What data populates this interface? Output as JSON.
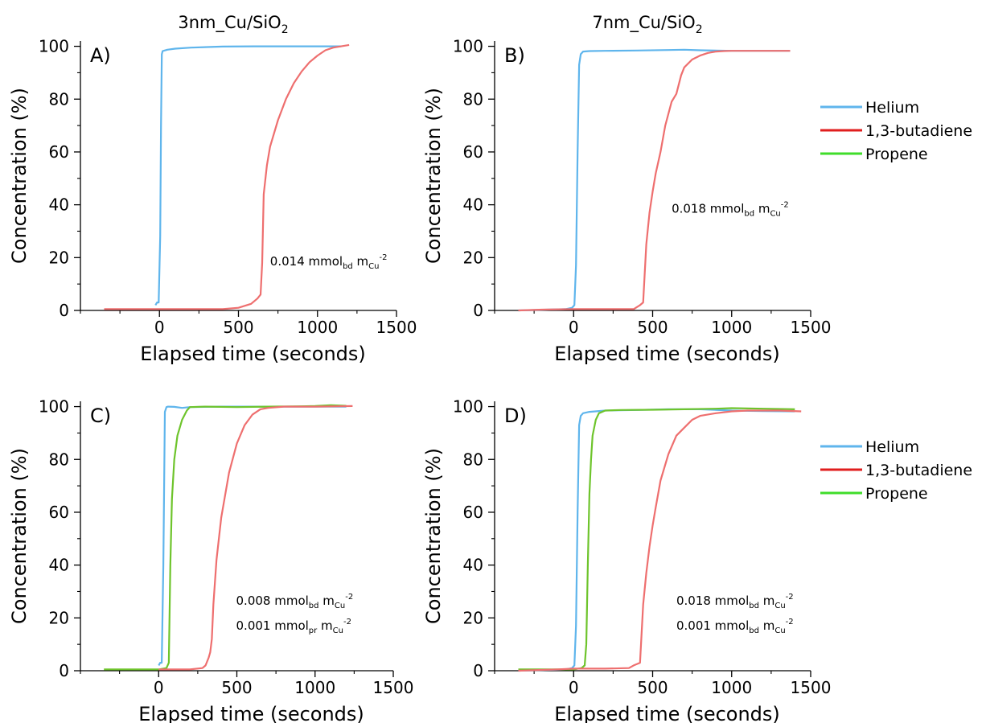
{
  "figure": {
    "colors": {
      "helium": "#5fb5ec",
      "butadiene": "#ee6f6f",
      "propene": "#6ec42c",
      "legend_helium": "#5fb5ec",
      "legend_butadiene": "#e01e1e",
      "legend_propene": "#3fdd2a"
    },
    "legends": [
      {
        "items": [
          {
            "label": "Helium",
            "key": "helium"
          },
          {
            "label": "1,3-butadiene",
            "key": "butadiene"
          },
          {
            "label": "Propene",
            "key": "propene"
          }
        ]
      },
      {
        "items": [
          {
            "label": "Helium",
            "key": "helium"
          },
          {
            "label": "1,3-butadiene",
            "key": "butadiene"
          },
          {
            "label": "Propene",
            "key": "propene"
          }
        ]
      }
    ]
  },
  "chart_data": [
    {
      "type": "line",
      "title": "3nm_Cu/SiO",
      "title_sub": "2",
      "panel": "A)",
      "xlabel": "Elapsed time (seconds)",
      "ylabel": "Concentration (%)",
      "xlim": [
        -500,
        1500
      ],
      "ylim": [
        0,
        102
      ],
      "xticks": [
        0,
        500,
        1000,
        1500
      ],
      "yticks": [
        0,
        20,
        40,
        60,
        80,
        100
      ],
      "grid": false,
      "annotations": [
        {
          "value": "0.014 mmol",
          "sub1": "bd",
          "mid": " m",
          "sub2": "Cu",
          "sup": "-2",
          "x": 700,
          "y": 17
        }
      ],
      "series": [
        {
          "name": "Helium",
          "key": "helium",
          "x": [
            -25,
            -15,
            -5,
            5,
            10,
            15,
            20,
            50,
            100,
            200,
            400,
            600,
            800,
            1000,
            1150
          ],
          "y": [
            2,
            3,
            3,
            28,
            70,
            97,
            98.2,
            98.7,
            99.1,
            99.5,
            99.9,
            100,
            100,
            100,
            100
          ]
        },
        {
          "name": "1,3-butadiene",
          "key": "butadiene",
          "x": [
            -350,
            -200,
            0,
            200,
            400,
            500,
            580,
            620,
            640,
            650,
            660,
            680,
            700,
            750,
            800,
            850,
            900,
            950,
            1000,
            1050,
            1100,
            1150,
            1200
          ],
          "y": [
            0.5,
            0.5,
            0.5,
            0.5,
            0.5,
            1,
            2.5,
            4.5,
            6,
            18,
            44,
            55,
            62,
            72,
            80,
            86,
            90.5,
            94,
            96.5,
            98.5,
            99.5,
            100,
            100.5
          ]
        }
      ]
    },
    {
      "type": "line",
      "title": "7nm_Cu/SiO",
      "title_sub": "2",
      "panel": "B)",
      "xlabel": "Elapsed time (seconds)",
      "ylabel": "Concentration (%)",
      "xlim": [
        -500,
        1500
      ],
      "ylim": [
        0,
        102
      ],
      "xticks": [
        0,
        500,
        1000,
        1500
      ],
      "yticks": [
        0,
        20,
        40,
        60,
        80,
        100
      ],
      "grid": false,
      "annotations": [
        {
          "value": "0.018 mmol",
          "sub1": "bd",
          "mid": " m",
          "sub2": "Cu",
          "sup": "-2",
          "x": 620,
          "y": 37
        }
      ],
      "series": [
        {
          "name": "Helium",
          "key": "helium",
          "x": [
            -350,
            -50,
            -10,
            5,
            15,
            25,
            35,
            45,
            60,
            100,
            200,
            400,
            600,
            700,
            800,
            1000,
            1200,
            1370
          ],
          "y": [
            0,
            0.5,
            1,
            2,
            17,
            60,
            93,
            97,
            98,
            98.2,
            98.3,
            98.4,
            98.6,
            98.7,
            98.5,
            98.3,
            98.3,
            98.3
          ]
        },
        {
          "name": "1,3-butadiene",
          "key": "butadiene",
          "x": [
            -350,
            -200,
            0,
            200,
            380,
            420,
            440,
            460,
            480,
            500,
            520,
            550,
            580,
            620,
            650,
            680,
            700,
            750,
            800,
            850,
            900,
            950,
            1000,
            1200,
            1370
          ],
          "y": [
            0,
            0.3,
            0.5,
            0.5,
            0.5,
            2,
            3,
            25,
            37,
            45,
            52,
            60,
            70,
            79,
            82,
            89,
            92,
            95,
            96.5,
            97.5,
            98,
            98.2,
            98.3,
            98.3,
            98.3
          ]
        }
      ]
    },
    {
      "type": "line",
      "title": "",
      "panel": "C)",
      "xlabel": "Elapsed time (seconds)",
      "ylabel": "Concentration (%)",
      "xlim": [
        -500,
        1500
      ],
      "ylim": [
        0,
        102
      ],
      "xticks": [
        0,
        500,
        1000,
        1500
      ],
      "yticks": [
        0,
        20,
        40,
        60,
        80,
        100
      ],
      "grid": false,
      "annotations": [
        {
          "value": "0.008 mmol",
          "sub1": "bd",
          "mid": " m",
          "sub2": "Cu",
          "sup": "-2",
          "x": 495,
          "y": 25
        },
        {
          "value": "0.001 mmol",
          "sub1": "pr",
          "mid": " m",
          "sub2": "Cu",
          "sup": "-2",
          "x": 495,
          "y": 15.5
        }
      ],
      "series": [
        {
          "name": "Helium",
          "key": "helium",
          "x": [
            0,
            10,
            20,
            30,
            40,
            50,
            60,
            100,
            150,
            200,
            400,
            600,
            800,
            1000,
            1200
          ],
          "y": [
            2,
            3,
            3,
            40,
            98,
            99.8,
            100,
            99.9,
            99.5,
            99.8,
            100,
            100,
            100,
            100,
            100
          ]
        },
        {
          "name": "Propene",
          "key": "propene",
          "x": [
            -350,
            -200,
            0,
            50,
            65,
            75,
            85,
            100,
            120,
            150,
            180,
            200,
            300,
            500,
            700,
            900,
            1000,
            1100,
            1200
          ],
          "y": [
            0.5,
            0.5,
            0.5,
            1,
            3,
            40,
            65,
            80,
            89,
            95,
            98.5,
            99.8,
            100,
            99.8,
            100,
            100.1,
            100.2,
            100.5,
            100.3
          ]
        },
        {
          "name": "1,3-butadiene",
          "key": "butadiene",
          "x": [
            0,
            100,
            200,
            280,
            300,
            320,
            330,
            340,
            350,
            370,
            400,
            450,
            500,
            550,
            600,
            650,
            700,
            800,
            1000,
            1240
          ],
          "y": [
            0.5,
            0.5,
            0.5,
            1,
            2,
            5,
            7,
            12,
            25,
            42,
            58,
            75,
            86,
            93,
            97,
            99,
            99.5,
            100,
            100,
            100.2
          ]
        }
      ]
    },
    {
      "type": "line",
      "title": "",
      "panel": "D)",
      "xlabel": "Elapsed time (seconds)",
      "ylabel": "Concentration (%)",
      "xlim": [
        -500,
        1500
      ],
      "ylim": [
        0,
        102
      ],
      "xticks": [
        0,
        500,
        1000,
        1500
      ],
      "yticks": [
        0,
        20,
        40,
        60,
        80,
        100
      ],
      "grid": false,
      "annotations": [
        {
          "value": "0.018 mmol",
          "sub1": "bd",
          "mid": " m",
          "sub2": "Cu",
          "sup": "-2",
          "x": 650,
          "y": 25
        },
        {
          "value": "0.001 mmol",
          "sub1": "bd",
          "mid": " m",
          "sub2": "Cu",
          "sup": "-2",
          "x": 650,
          "y": 15.5
        }
      ],
      "series": [
        {
          "name": "Helium",
          "key": "helium",
          "x": [
            -350,
            -50,
            -10,
            5,
            15,
            25,
            35,
            45,
            60,
            100,
            200,
            400,
            600,
            800,
            1000,
            1200,
            1400
          ],
          "y": [
            0,
            0.5,
            1,
            2,
            17,
            60,
            93,
            96.5,
            97.5,
            98,
            98.5,
            98.7,
            99,
            99,
            98.5,
            98.3,
            98.2
          ]
        },
        {
          "name": "Propene",
          "key": "propene",
          "x": [
            -350,
            0,
            50,
            70,
            80,
            90,
            100,
            110,
            120,
            140,
            160,
            200,
            300,
            500,
            700,
            900,
            1000,
            1200,
            1400
          ],
          "y": [
            0.5,
            0.5,
            1,
            2,
            10,
            40,
            67,
            80,
            89,
            95,
            97.5,
            98.5,
            98.7,
            98.8,
            99,
            99.2,
            99.4,
            99.2,
            99
          ]
        },
        {
          "name": "1,3-butadiene",
          "key": "butadiene",
          "x": [
            -350,
            -200,
            -100,
            0,
            200,
            350,
            380,
            420,
            440,
            460,
            480,
            500,
            520,
            550,
            600,
            650,
            700,
            750,
            800,
            900,
            1000,
            1100,
            1200,
            1300,
            1440
          ],
          "y": [
            0,
            0.3,
            0.5,
            0.8,
            0.8,
            1,
            2,
            3,
            25,
            37,
            47,
            55,
            62,
            72,
            82,
            89,
            92,
            95,
            96.5,
            97.5,
            98.2,
            98.5,
            98.5,
            98.5,
            98.2
          ]
        }
      ]
    }
  ]
}
